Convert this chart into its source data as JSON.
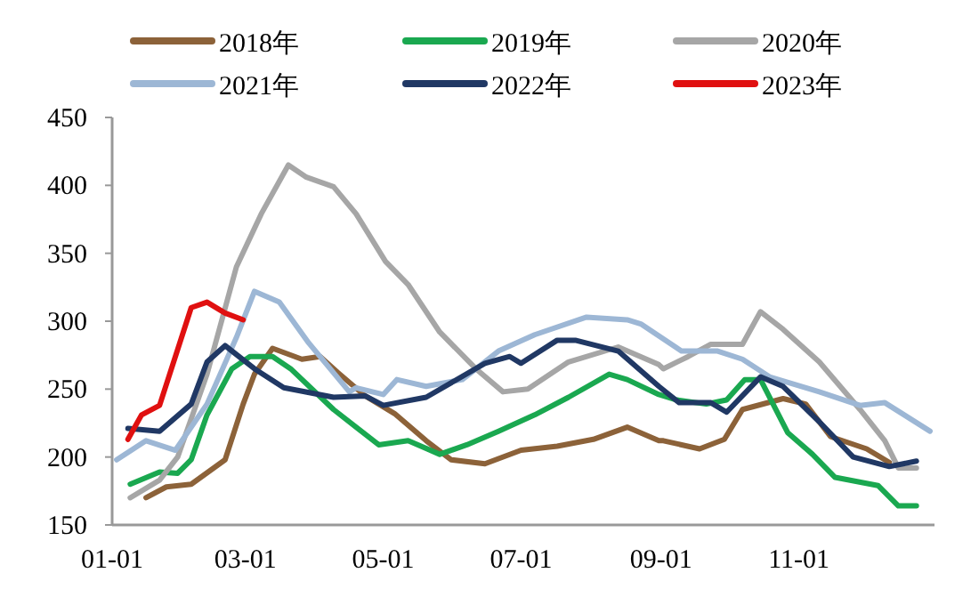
{
  "chart_data": {
    "type": "line",
    "legend": "top",
    "xlim": [
      "--01-01",
      "--12-31"
    ],
    "xticks": [
      {
        "value": "--01-01",
        "label": "01-01"
      },
      {
        "value": "--03-01",
        "label": "03-01"
      },
      {
        "value": "--05-01",
        "label": "05-01"
      },
      {
        "value": "--07-01",
        "label": "07-01"
      },
      {
        "value": "--09-01",
        "label": "09-01"
      },
      {
        "value": "--11-01",
        "label": "11-01"
      }
    ],
    "ylim": [
      150,
      450
    ],
    "yticks": [
      150,
      200,
      250,
      300,
      350,
      400,
      450
    ],
    "series": [
      {
        "name": "2018年",
        "color": "#8c6239",
        "x": [
          "--01-16",
          "--01-25",
          "--02-05",
          "--02-20",
          "--02-28",
          "--03-05",
          "--03-13",
          "--03-26",
          "--04-03",
          "--04-11",
          "--04-23",
          "--05-06",
          "--05-20",
          "--05-31",
          "--06-15",
          "--07-01",
          "--07-17",
          "--08-02",
          "--08-17",
          "--08-31",
          "--09-02",
          "--09-18",
          "--09-29",
          "--10-07",
          "--10-25",
          "--11-04",
          "--11-15",
          "--12-01",
          "--12-11"
        ],
        "values": [
          170,
          178,
          180,
          198,
          239,
          261,
          280,
          272,
          274,
          262,
          245,
          232,
          212,
          198,
          195,
          205,
          208,
          213,
          222,
          212,
          212,
          206,
          213,
          235,
          243,
          239,
          215,
          206,
          196
        ]
      },
      {
        "name": "2019年",
        "color": "#1aa850",
        "x": [
          "--01-09",
          "--01-22",
          "--01-30",
          "--02-05",
          "--02-12",
          "--02-23",
          "--03-03",
          "--03-13",
          "--03-21",
          "--04-09",
          "--04-19",
          "--04-29",
          "--05-12",
          "--05-26",
          "--06-07",
          "--06-21",
          "--07-07",
          "--07-22",
          "--08-09",
          "--08-17",
          "--08-31",
          "--09-08",
          "--09-21",
          "--09-30",
          "--10-08",
          "--10-15",
          "--10-27",
          "--11-07",
          "--11-17",
          "--12-06",
          "--12-15",
          "--12-23"
        ],
        "values": [
          180,
          189,
          188,
          198,
          231,
          265,
          274,
          274,
          265,
          235,
          222,
          209,
          212,
          202,
          209,
          219,
          231,
          244,
          261,
          257,
          246,
          242,
          239,
          242,
          257,
          257,
          218,
          202,
          185,
          179,
          164,
          164
        ]
      },
      {
        "name": "2020年",
        "color": "#a6a6a6",
        "x": [
          "--01-09",
          "--01-22",
          "--01-30",
          "--02-12",
          "--02-25",
          "--03-08",
          "--03-20",
          "--03-28",
          "--04-09",
          "--04-19",
          "--05-02",
          "--05-12",
          "--05-26",
          "--06-11",
          "--06-23",
          "--07-04",
          "--07-22",
          "--08-13",
          "--08-31",
          "--09-02",
          "--09-13",
          "--09-23",
          "--10-07",
          "--10-15",
          "--10-25",
          "--11-10",
          "--11-28",
          "--12-09",
          "--12-15",
          "--12-23"
        ],
        "values": [
          170,
          183,
          200,
          261,
          340,
          379,
          415,
          406,
          399,
          379,
          344,
          327,
          292,
          265,
          248,
          250,
          270,
          281,
          268,
          265,
          274,
          283,
          283,
          307,
          294,
          270,
          235,
          212,
          192,
          192
        ]
      },
      {
        "name": "2021年",
        "color": "#9db7d5",
        "x": [
          "--01-03",
          "--01-16",
          "--01-29",
          "--02-12",
          "--02-25",
          "--03-05",
          "--03-16",
          "--03-29",
          "--04-16",
          "--04-19",
          "--05-01",
          "--05-07",
          "--05-20",
          "--06-05",
          "--06-21",
          "--07-07",
          "--07-30",
          "--08-17",
          "--08-23",
          "--09-10",
          "--09-26",
          "--10-07",
          "--10-19",
          "--11-10",
          "--11-28",
          "--12-09",
          "--12-29"
        ],
        "values": [
          198,
          212,
          205,
          239,
          288,
          322,
          314,
          284,
          248,
          251,
          246,
          257,
          252,
          257,
          278,
          290,
          303,
          301,
          298,
          278,
          278,
          272,
          259,
          248,
          238,
          240,
          219
        ]
      },
      {
        "name": "2022年",
        "color": "#203864",
        "x": [
          "--01-08",
          "--01-22",
          "--02-05",
          "--02-12",
          "--02-20",
          "--03-05",
          "--03-18",
          "--04-09",
          "--04-23",
          "--05-01",
          "--05-20",
          "--06-15",
          "--06-26",
          "--07-01",
          "--07-17",
          "--07-25",
          "--08-13",
          "--08-31",
          "--09-09",
          "--09-23",
          "--09-30",
          "--10-15",
          "--10-25",
          "--11-10",
          "--11-25",
          "--12-11",
          "--12-23"
        ],
        "values": [
          221,
          219,
          239,
          270,
          282,
          265,
          251,
          244,
          245,
          238,
          244,
          269,
          274,
          269,
          286,
          286,
          278,
          252,
          240,
          240,
          233,
          259,
          252,
          226,
          200,
          193,
          197
        ]
      },
      {
        "name": "2023年",
        "color": "#e01010",
        "x": [
          "--01-08",
          "--01-14",
          "--01-22",
          "--02-05",
          "--02-12",
          "--02-20",
          "--02-28"
        ],
        "values": [
          213,
          231,
          238,
          310,
          314,
          306,
          301
        ]
      }
    ]
  }
}
